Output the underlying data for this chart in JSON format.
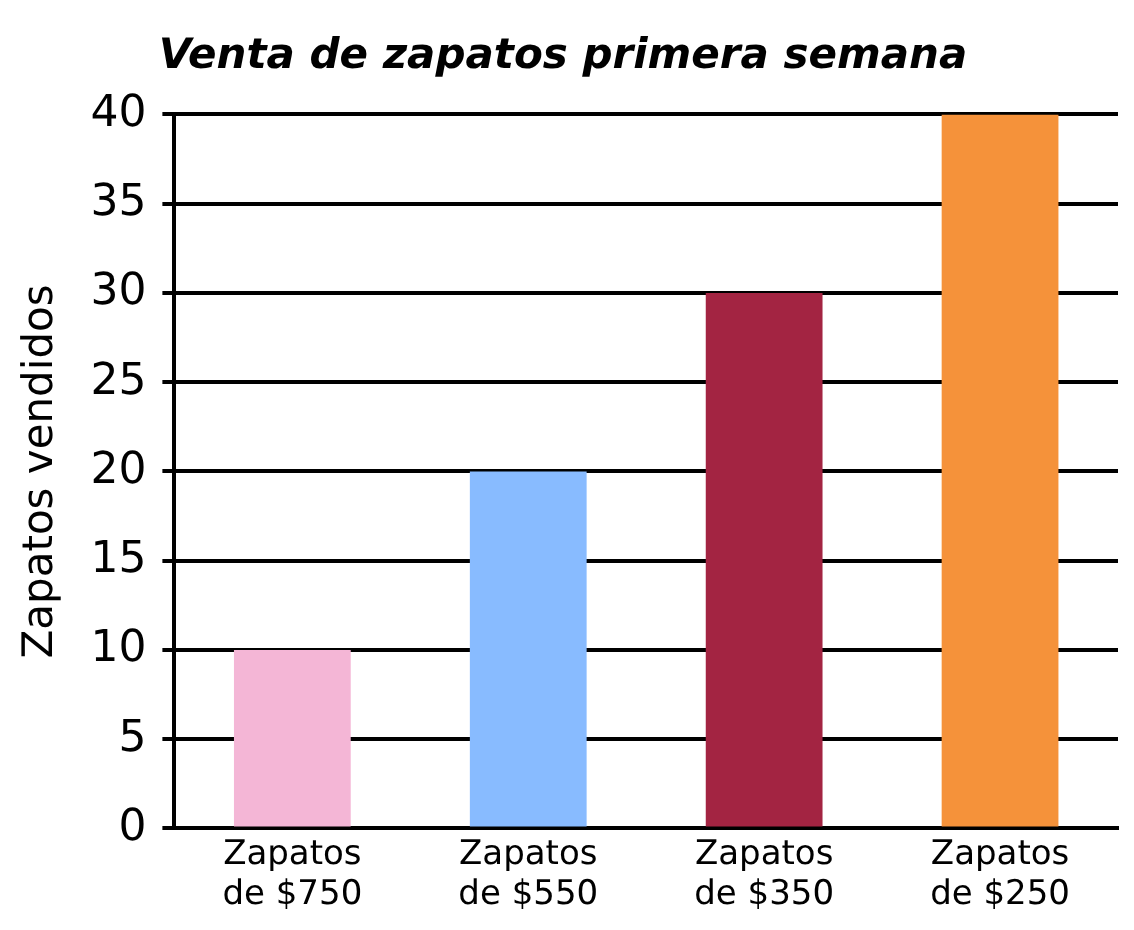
{
  "chart_data": {
    "type": "bar",
    "title": "Venta de zapatos primera semana",
    "ylabel": "Zapatos vendidos",
    "categories": [
      "Zapatos de $750",
      "Zapatos de $550",
      "Zapatos de $350",
      "Zapatos de $250"
    ],
    "values": [
      10,
      20,
      30,
      40
    ],
    "colors": [
      "#f4b6d6",
      "#88bbff",
      "#a32442",
      "#f5923a"
    ],
    "ylim": [
      0,
      40
    ],
    "yticks": [
      0,
      5,
      10,
      15,
      20,
      25,
      30,
      35,
      40
    ],
    "grid": "y",
    "legend": false
  }
}
